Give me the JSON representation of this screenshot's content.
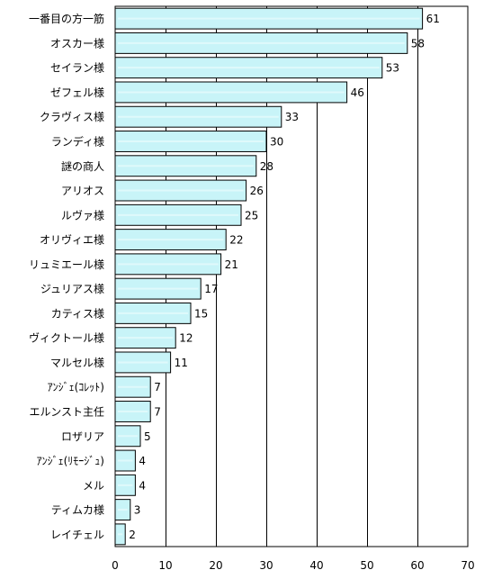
{
  "chart_data": {
    "type": "bar",
    "orientation": "horizontal",
    "title": "",
    "xlabel": "",
    "ylabel": "",
    "xlim": [
      0,
      70
    ],
    "x_ticks": [
      0,
      10,
      20,
      30,
      40,
      50,
      60,
      70
    ],
    "grid": "vertical",
    "legend": "none",
    "categories": [
      "一番目の方一筋",
      "オスカー様",
      "セイラン様",
      "ゼフェル様",
      "クラヴィス様",
      "ランディ様",
      "謎の商人",
      "アリオス",
      "ルヴァ様",
      "オリヴィエ様",
      "リュミエール様",
      "ジュリアス様",
      "カティス様",
      "ヴィクトール様",
      "マルセル様",
      "ｱﾝｼﾞｪ(ｺﾚｯﾄ)",
      "エルンスト主任",
      "ロザリア",
      "ｱﾝｼﾞｪ(ﾘﾓｰｼﾞｭ)",
      "メル",
      "ティムカ様",
      "レイチェル"
    ],
    "values": [
      61,
      58,
      53,
      46,
      33,
      30,
      28,
      26,
      25,
      22,
      21,
      17,
      15,
      12,
      11,
      7,
      7,
      5,
      4,
      4,
      3,
      2
    ],
    "colors": {
      "bar_fill": "#c8f4f8",
      "bar_highlight": "#eafcfd",
      "bar_stroke": "#000000",
      "grid": "#000000",
      "text": "#000000"
    }
  }
}
